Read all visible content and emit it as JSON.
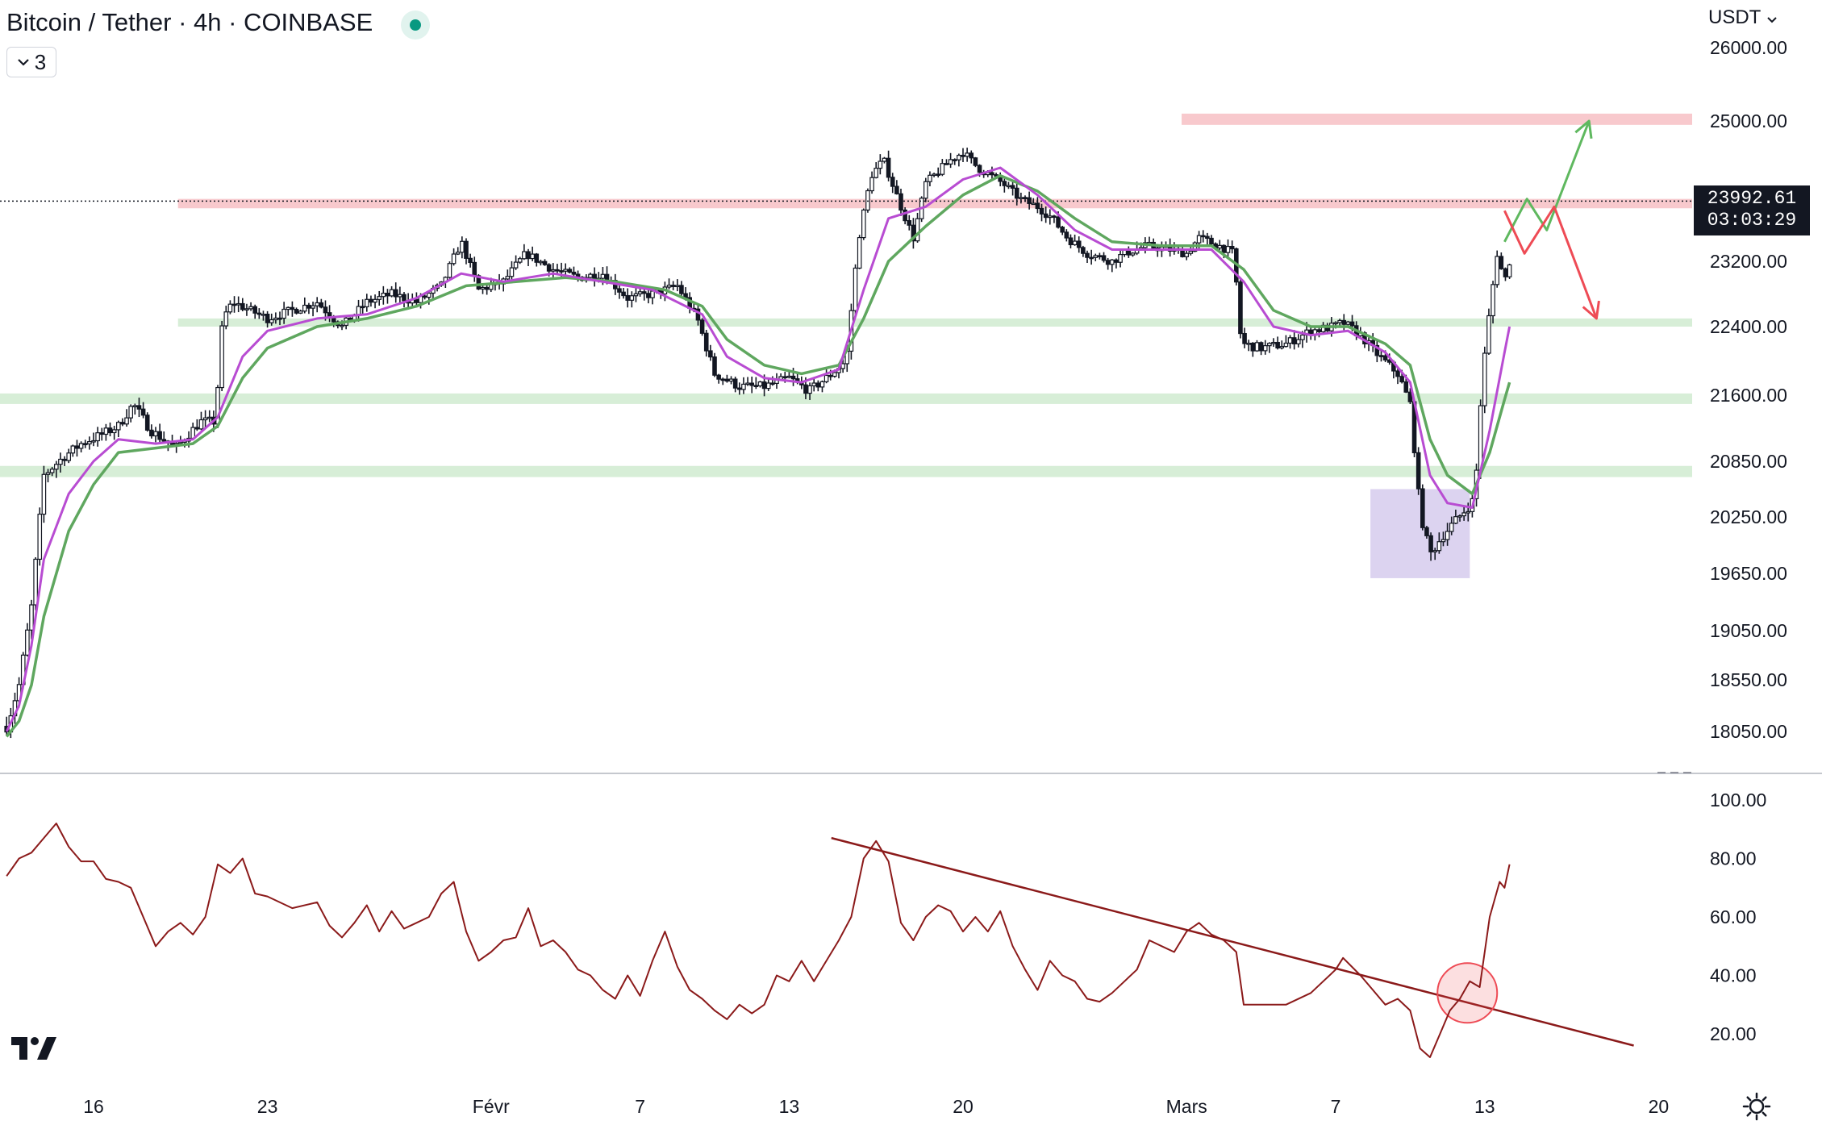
{
  "header": {
    "title": "Bitcoin / Tether · 4h · COINBASE",
    "indicator_count": "3",
    "currency": "USDT"
  },
  "price_badge": {
    "price": "23992.61",
    "countdown": "03:03:29"
  },
  "colors": {
    "candle": "#131722",
    "ema_fast": "#b84cd2",
    "ema_slow": "#5fa75f",
    "resistance_zone": "#f8c9cd",
    "support_zone": "#d7eed7",
    "demand_box": "#dcd3f0",
    "rsi_line": "#8b1a1a",
    "trendline": "#8b1a1a",
    "bull_arrow": "#5fb85f",
    "bear_arrow": "#ee4b55"
  },
  "chart_data": [
    {
      "type": "candlestick",
      "pair": "Bitcoin / Tether",
      "timeframe": "4h",
      "exchange": "COINBASE",
      "x_ticks": [
        {
          "label": "16",
          "day": 16
        },
        {
          "label": "23",
          "day": 23
        },
        {
          "label": "Févr",
          "day": 32
        },
        {
          "label": "7",
          "day": 38
        },
        {
          "label": "13",
          "day": 44
        },
        {
          "label": "20",
          "day": 51
        },
        {
          "label": "Mars",
          "day": 60
        },
        {
          "label": "7",
          "day": 66
        },
        {
          "label": "13",
          "day": 72
        },
        {
          "label": "20",
          "day": 79
        }
      ],
      "y_ticks": [
        "26000.00",
        "25000.00",
        "23200.00",
        "22400.00",
        "21600.00",
        "20850.00",
        "20250.00",
        "19650.00",
        "19050.00",
        "18550.00",
        "18050.00"
      ],
      "last_price": 23992.61,
      "price_path": [
        [
          12.5,
          18100
        ],
        [
          13.0,
          18500
        ],
        [
          13.5,
          19300
        ],
        [
          14.0,
          20700
        ],
        [
          14.8,
          20900
        ],
        [
          15.5,
          21050
        ],
        [
          16.3,
          21150
        ],
        [
          17.0,
          21250
        ],
        [
          17.6,
          21500
        ],
        [
          18.3,
          21200
        ],
        [
          19.3,
          21000
        ],
        [
          20.3,
          21300
        ],
        [
          20.9,
          21300
        ],
        [
          21.2,
          22500
        ],
        [
          21.6,
          22700
        ],
        [
          22.3,
          22600
        ],
        [
          23.0,
          22500
        ],
        [
          24.0,
          22600
        ],
        [
          25.0,
          22700
        ],
        [
          26.0,
          22400
        ],
        [
          27.0,
          22700
        ],
        [
          28.0,
          22800
        ],
        [
          29.0,
          22700
        ],
        [
          30.0,
          22900
        ],
        [
          30.8,
          23450
        ],
        [
          31.5,
          22850
        ],
        [
          32.5,
          22950
        ],
        [
          33.4,
          23300
        ],
        [
          34.5,
          23100
        ],
        [
          35.5,
          23000
        ],
        [
          36.5,
          23050
        ],
        [
          37.5,
          22750
        ],
        [
          38.5,
          22800
        ],
        [
          39.5,
          22900
        ],
        [
          40.3,
          22500
        ],
        [
          41.0,
          21850
        ],
        [
          42.0,
          21700
        ],
        [
          43.0,
          21700
        ],
        [
          44.0,
          21800
        ],
        [
          44.8,
          21650
        ],
        [
          45.5,
          21800
        ],
        [
          46.3,
          22000
        ],
        [
          46.8,
          23500
        ],
        [
          47.3,
          24300
        ],
        [
          47.8,
          24500
        ],
        [
          48.5,
          23900
        ],
        [
          49.0,
          23500
        ],
        [
          49.5,
          24200
        ],
        [
          50.5,
          24500
        ],
        [
          51.0,
          24600
        ],
        [
          51.6,
          24400
        ],
        [
          52.6,
          24200
        ],
        [
          53.3,
          24000
        ],
        [
          54.0,
          23900
        ],
        [
          54.6,
          23750
        ],
        [
          55.2,
          23500
        ],
        [
          56.0,
          23300
        ],
        [
          57.0,
          23200
        ],
        [
          57.5,
          23300
        ],
        [
          58.4,
          23400
        ],
        [
          59.3,
          23350
        ],
        [
          60.0,
          23300
        ],
        [
          60.5,
          23500
        ],
        [
          61.3,
          23400
        ],
        [
          61.9,
          23300
        ],
        [
          62.2,
          22200
        ],
        [
          63.0,
          22150
        ],
        [
          64.0,
          22200
        ],
        [
          65.0,
          22350
        ],
        [
          65.9,
          22400
        ],
        [
          66.3,
          22450
        ],
        [
          67.0,
          22300
        ],
        [
          67.6,
          22100
        ],
        [
          68.5,
          21850
        ],
        [
          69.0,
          21500
        ],
        [
          69.4,
          20300
        ],
        [
          69.8,
          19850
        ],
        [
          70.3,
          20050
        ],
        [
          70.8,
          20200
        ],
        [
          71.3,
          20350
        ],
        [
          71.6,
          20450
        ],
        [
          71.9,
          21800
        ],
        [
          72.2,
          22600
        ],
        [
          72.5,
          23300
        ],
        [
          72.8,
          22950
        ],
        [
          73.0,
          23200
        ]
      ],
      "ema_fast_path": [
        [
          12.5,
          18050
        ],
        [
          13.0,
          18300
        ],
        [
          13.5,
          18900
        ],
        [
          14.0,
          19800
        ],
        [
          15.0,
          20500
        ],
        [
          16.0,
          20850
        ],
        [
          17.0,
          21100
        ],
        [
          18.5,
          21050
        ],
        [
          20.0,
          21100
        ],
        [
          21.0,
          21350
        ],
        [
          22.0,
          22050
        ],
        [
          23.0,
          22350
        ],
        [
          25.0,
          22500
        ],
        [
          27.0,
          22550
        ],
        [
          29.0,
          22750
        ],
        [
          30.8,
          23050
        ],
        [
          32.5,
          22950
        ],
        [
          34.5,
          23050
        ],
        [
          36.5,
          22950
        ],
        [
          38.5,
          22850
        ],
        [
          40.5,
          22550
        ],
        [
          41.5,
          22050
        ],
        [
          43.0,
          21800
        ],
        [
          44.5,
          21750
        ],
        [
          46.0,
          21900
        ],
        [
          47.0,
          22850
        ],
        [
          48.0,
          23750
        ],
        [
          49.5,
          23900
        ],
        [
          51.0,
          24250
        ],
        [
          52.5,
          24400
        ],
        [
          54.0,
          24050
        ],
        [
          55.5,
          23600
        ],
        [
          57.0,
          23350
        ],
        [
          59.0,
          23350
        ],
        [
          61.0,
          23350
        ],
        [
          62.3,
          22950
        ],
        [
          63.5,
          22400
        ],
        [
          65.0,
          22300
        ],
        [
          66.5,
          22350
        ],
        [
          68.0,
          22100
        ],
        [
          69.0,
          21750
        ],
        [
          69.8,
          20700
        ],
        [
          70.5,
          20400
        ],
        [
          71.5,
          20350
        ],
        [
          72.2,
          21200
        ],
        [
          72.8,
          22100
        ],
        [
          73.0,
          22400
        ]
      ],
      "ema_slow_path": [
        [
          12.5,
          18000
        ],
        [
          13.0,
          18150
        ],
        [
          13.5,
          18500
        ],
        [
          14.0,
          19200
        ],
        [
          15.0,
          20100
        ],
        [
          16.0,
          20600
        ],
        [
          17.0,
          20950
        ],
        [
          18.5,
          21000
        ],
        [
          20.0,
          21050
        ],
        [
          21.0,
          21250
        ],
        [
          22.0,
          21800
        ],
        [
          23.0,
          22150
        ],
        [
          25.0,
          22400
        ],
        [
          27.0,
          22500
        ],
        [
          29.0,
          22650
        ],
        [
          31.0,
          22900
        ],
        [
          33.0,
          22950
        ],
        [
          35.0,
          23000
        ],
        [
          37.0,
          22950
        ],
        [
          39.0,
          22850
        ],
        [
          40.5,
          22650
        ],
        [
          41.5,
          22250
        ],
        [
          43.0,
          21950
        ],
        [
          44.5,
          21850
        ],
        [
          46.0,
          21950
        ],
        [
          47.0,
          22500
        ],
        [
          48.0,
          23200
        ],
        [
          49.5,
          23650
        ],
        [
          51.0,
          24050
        ],
        [
          52.5,
          24300
        ],
        [
          54.0,
          24100
        ],
        [
          55.5,
          23750
        ],
        [
          57.0,
          23450
        ],
        [
          59.0,
          23400
        ],
        [
          61.0,
          23400
        ],
        [
          62.3,
          23100
        ],
        [
          63.5,
          22600
        ],
        [
          65.0,
          22400
        ],
        [
          66.5,
          22400
        ],
        [
          68.0,
          22200
        ],
        [
          69.0,
          21950
        ],
        [
          69.8,
          21100
        ],
        [
          70.5,
          20700
        ],
        [
          71.5,
          20500
        ],
        [
          72.2,
          20950
        ],
        [
          72.8,
          21550
        ],
        [
          73.0,
          21750
        ]
      ],
      "resistance_zones": [
        [
          24950,
          25100
        ],
        [
          23880,
          24000
        ]
      ],
      "support_zones": [
        [
          22400,
          22500
        ],
        [
          21500,
          21620
        ],
        [
          20680,
          20800
        ]
      ],
      "demand_box": {
        "x_start": 67.4,
        "x_end": 71.4,
        "price_low": 19600,
        "price_high": 20550
      },
      "projection_bull": [
        [
          72.8,
          23450
        ],
        [
          73.7,
          24000
        ],
        [
          74.5,
          23600
        ],
        [
          76.2,
          25000
        ]
      ],
      "projection_bear": [
        [
          72.8,
          23850
        ],
        [
          73.6,
          23300
        ],
        [
          74.8,
          23900
        ],
        [
          76.5,
          22500
        ]
      ]
    },
    {
      "type": "line",
      "indicator": "RSI",
      "y_ticks": [
        "100.00",
        "80.00",
        "60.00",
        "40.00",
        "20.00"
      ],
      "ylim": [
        0,
        100
      ],
      "rsi_path": [
        [
          12.5,
          74
        ],
        [
          13.0,
          80
        ],
        [
          13.5,
          82
        ],
        [
          14.0,
          87
        ],
        [
          14.5,
          92
        ],
        [
          15.0,
          84
        ],
        [
          15.5,
          79
        ],
        [
          16.0,
          79
        ],
        [
          16.5,
          73
        ],
        [
          17.0,
          72
        ],
        [
          17.5,
          70
        ],
        [
          18.0,
          60
        ],
        [
          18.5,
          50
        ],
        [
          19.0,
          55
        ],
        [
          19.5,
          58
        ],
        [
          20.0,
          54
        ],
        [
          20.5,
          60
        ],
        [
          21.0,
          78
        ],
        [
          21.5,
          75
        ],
        [
          22.0,
          80
        ],
        [
          22.5,
          68
        ],
        [
          23.0,
          67
        ],
        [
          24.0,
          63
        ],
        [
          25.0,
          65
        ],
        [
          25.5,
          57
        ],
        [
          26.0,
          53
        ],
        [
          26.5,
          58
        ],
        [
          27.0,
          64
        ],
        [
          27.5,
          55
        ],
        [
          28.0,
          62
        ],
        [
          28.5,
          56
        ],
        [
          29.0,
          58
        ],
        [
          29.5,
          60
        ],
        [
          30.0,
          68
        ],
        [
          30.5,
          72
        ],
        [
          31.0,
          55
        ],
        [
          31.5,
          45
        ],
        [
          32.0,
          48
        ],
        [
          32.5,
          52
        ],
        [
          33.0,
          53
        ],
        [
          33.5,
          63
        ],
        [
          34.0,
          50
        ],
        [
          34.5,
          52
        ],
        [
          35.0,
          48
        ],
        [
          35.5,
          42
        ],
        [
          36.0,
          40
        ],
        [
          36.5,
          35
        ],
        [
          37.0,
          32
        ],
        [
          37.5,
          40
        ],
        [
          38.0,
          33
        ],
        [
          38.5,
          45
        ],
        [
          39.0,
          55
        ],
        [
          39.5,
          43
        ],
        [
          40.0,
          35
        ],
        [
          40.5,
          32
        ],
        [
          41.0,
          28
        ],
        [
          41.5,
          25
        ],
        [
          42.0,
          30
        ],
        [
          42.5,
          27
        ],
        [
          43.0,
          30
        ],
        [
          43.5,
          40
        ],
        [
          44.0,
          38
        ],
        [
          44.5,
          45
        ],
        [
          45.0,
          38
        ],
        [
          45.5,
          45
        ],
        [
          46.0,
          52
        ],
        [
          46.5,
          60
        ],
        [
          47.0,
          80
        ],
        [
          47.5,
          86
        ],
        [
          48.0,
          79
        ],
        [
          48.5,
          58
        ],
        [
          49.0,
          52
        ],
        [
          49.5,
          60
        ],
        [
          50.0,
          64
        ],
        [
          50.5,
          62
        ],
        [
          51.0,
          55
        ],
        [
          51.5,
          60
        ],
        [
          52.0,
          55
        ],
        [
          52.5,
          62
        ],
        [
          53.0,
          50
        ],
        [
          53.5,
          42
        ],
        [
          54.0,
          35
        ],
        [
          54.5,
          45
        ],
        [
          55.0,
          40
        ],
        [
          55.5,
          38
        ],
        [
          56.0,
          32
        ],
        [
          56.5,
          31
        ],
        [
          57.0,
          34
        ],
        [
          57.5,
          38
        ],
        [
          58.0,
          42
        ],
        [
          58.5,
          52
        ],
        [
          59.0,
          50
        ],
        [
          59.5,
          48
        ],
        [
          60.0,
          55
        ],
        [
          60.5,
          58
        ],
        [
          61.0,
          54
        ],
        [
          61.5,
          52
        ],
        [
          62.0,
          48
        ],
        [
          62.3,
          30
        ],
        [
          63.0,
          30
        ],
        [
          64.0,
          30
        ],
        [
          65.0,
          34
        ],
        [
          65.5,
          38
        ],
        [
          66.0,
          42
        ],
        [
          66.3,
          46
        ],
        [
          67.0,
          40
        ],
        [
          67.5,
          35
        ],
        [
          68.0,
          30
        ],
        [
          68.5,
          32
        ],
        [
          69.0,
          28
        ],
        [
          69.4,
          15
        ],
        [
          69.8,
          12
        ],
        [
          70.2,
          20
        ],
        [
          70.6,
          28
        ],
        [
          71.0,
          32
        ],
        [
          71.4,
          38
        ],
        [
          71.8,
          36
        ],
        [
          72.2,
          60
        ],
        [
          72.6,
          72
        ],
        [
          72.8,
          70
        ],
        [
          73.0,
          78
        ]
      ],
      "trendline": [
        [
          45.7,
          87
        ],
        [
          78.0,
          16
        ]
      ],
      "highlight_circle": {
        "x": 71.3,
        "rsi": 34
      }
    }
  ]
}
